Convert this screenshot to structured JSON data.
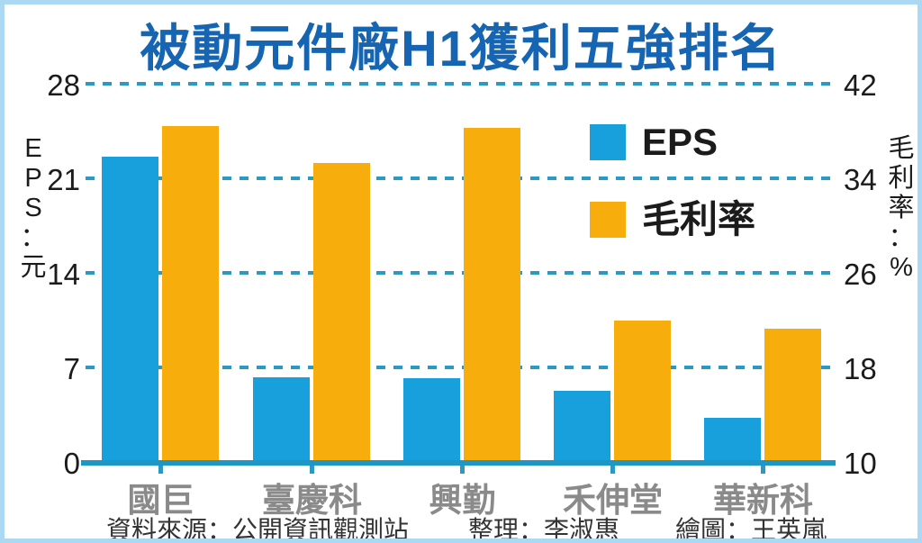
{
  "title": "被動元件廠H1獲利五強排名",
  "colors": {
    "title_blue": "#1565b2",
    "eps_bar_blue": "#17a0dc",
    "margin_bar_orange": "#f7ae0c",
    "gridline_teal": "#2a99c4",
    "baseline_teal": "#1f97c4",
    "category_gray": "#8a8a8a",
    "axis_text_black": "#1b1b1b",
    "footer_text": "#333333",
    "frame_border_lightblue": "#abd9f3"
  },
  "chart_data": {
    "type": "bar",
    "title": "被動元件廠H1獲利五強排名",
    "categories": [
      "國巨",
      "臺慶科",
      "興勤",
      "禾伸堂",
      "華新科"
    ],
    "series": [
      {
        "name": "EPS",
        "axis": "left",
        "color": "#17a0dc",
        "values": [
          22.6,
          6.3,
          6.2,
          5.3,
          3.3
        ]
      },
      {
        "name": "毛利率",
        "axis": "right",
        "color": "#f7ae0c",
        "values": [
          38.4,
          35.3,
          38.3,
          22.0,
          21.3
        ]
      }
    ],
    "left_axis": {
      "label": "EPS：元",
      "min": 0,
      "max": 28,
      "ticks": [
        0,
        7,
        14,
        21,
        28
      ]
    },
    "right_axis": {
      "label": "毛利率：%",
      "min": 10,
      "max": 42,
      "ticks": [
        10,
        18,
        26,
        34,
        42
      ]
    },
    "legend": [
      {
        "label": "EPS"
      },
      {
        "label": "毛利率"
      }
    ],
    "grid": "horizontal-dashed",
    "legend_position": "upper-right-inside"
  },
  "footer": {
    "source": "資料來源：公開資訊觀測站",
    "editor": "整理：李淑惠",
    "illustrator": "繪圖：王英嵐"
  }
}
